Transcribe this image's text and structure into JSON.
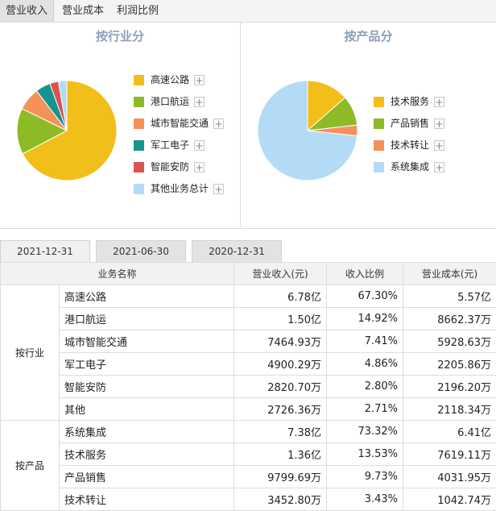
{
  "top_tabs": [
    "营业收入",
    "营业成本",
    "利润比例"
  ],
  "left_chart": {
    "title": "按行业分",
    "legend": [
      "高速公路",
      "港口航运",
      "城市智能交通",
      "军工电子",
      "智能安防",
      "其他业务总计"
    ],
    "colors": [
      "#f2be1a",
      "#8dbb25",
      "#f4925a",
      "#17948d",
      "#d9534f",
      "#b3dbf6"
    ],
    "values": [
      67.3,
      14.92,
      7.41,
      4.86,
      2.8,
      2.71
    ]
  },
  "right_chart": {
    "title": "按产品分",
    "legend": [
      "技术服务",
      "产品销售",
      "技术转让",
      "系统集成"
    ],
    "colors": [
      "#f2be1a",
      "#8dbb25",
      "#f4925a",
      "#b3dbf6"
    ],
    "values": [
      13.53,
      9.73,
      3.43,
      73.32
    ]
  },
  "plus_symbol": "+",
  "date_tabs": [
    "2021-12-31",
    "2021-06-30",
    "2020-12-31"
  ],
  "table": {
    "headers": [
      "业务名称",
      "营业收入(元)",
      "收入比例",
      "营业成本(元)"
    ],
    "groups": [
      {
        "label": "按行业",
        "rows": [
          {
            "name": "高速公路",
            "revenue": "6.78亿",
            "ratio": "67.30%",
            "cost": "5.57亿"
          },
          {
            "name": "港口航运",
            "revenue": "1.50亿",
            "ratio": "14.92%",
            "cost": "8662.37万"
          },
          {
            "name": "城市智能交通",
            "revenue": "7464.93万",
            "ratio": "7.41%",
            "cost": "5928.63万"
          },
          {
            "name": "军工电子",
            "revenue": "4900.29万",
            "ratio": "4.86%",
            "cost": "2205.86万"
          },
          {
            "name": "智能安防",
            "revenue": "2820.70万",
            "ratio": "2.80%",
            "cost": "2196.20万"
          },
          {
            "name": "其他",
            "revenue": "2726.36万",
            "ratio": "2.71%",
            "cost": "2118.34万"
          }
        ]
      },
      {
        "label": "按产品",
        "rows": [
          {
            "name": "系统集成",
            "revenue": "7.38亿",
            "ratio": "73.32%",
            "cost": "6.41亿"
          },
          {
            "name": "技术服务",
            "revenue": "1.36亿",
            "ratio": "13.53%",
            "cost": "7619.11万"
          },
          {
            "name": "产品销售",
            "revenue": "9799.69万",
            "ratio": "9.73%",
            "cost": "4031.95万"
          },
          {
            "name": "技术转让",
            "revenue": "3452.80万",
            "ratio": "3.43%",
            "cost": "1042.74万"
          }
        ]
      }
    ]
  }
}
